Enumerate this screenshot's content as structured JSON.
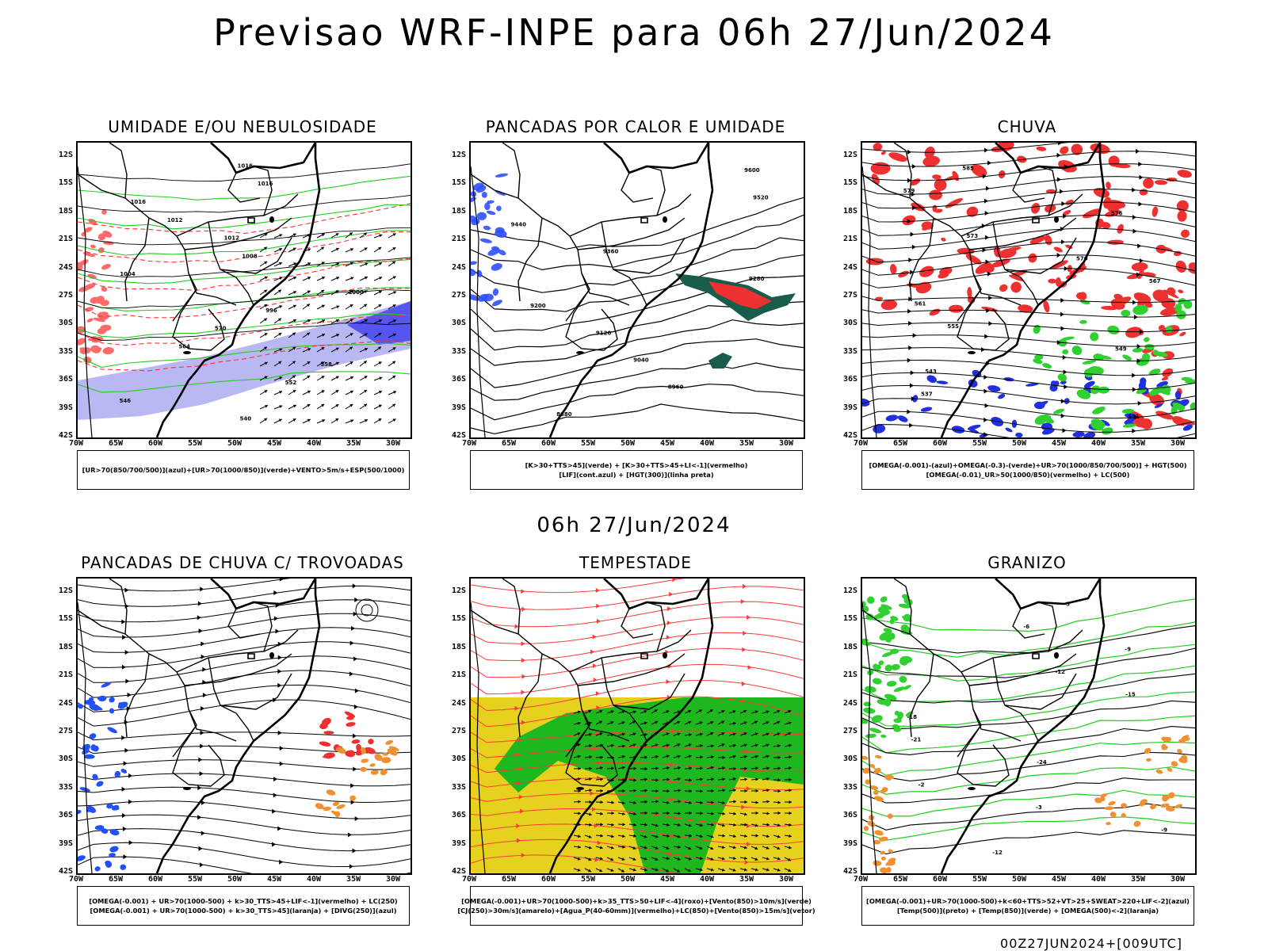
{
  "header": {
    "title": "Previsao WRF-INPE  para 06h 27/Jun/2024",
    "subtitle": "06h 27/Jun/2024",
    "run_stamp": "00Z27JUN2024+[009UTC]"
  },
  "axes": {
    "lat_labels": [
      "12S",
      "15S",
      "18S",
      "21S",
      "24S",
      "27S",
      "30S",
      "33S",
      "36S",
      "39S",
      "42S"
    ],
    "lon_labels": [
      "70W",
      "65W",
      "60W",
      "55W",
      "50W",
      "45W",
      "40W",
      "35W",
      "30W"
    ]
  },
  "panels": [
    {
      "id": "umidade",
      "title": "UMIDADE E/OU NEBULOSIDADE",
      "legend": [
        "[UR>70(850/700/500)](azul)+[UR>70(1000/850)](verde)+VENTO>5m/s+ESP(500/1000)"
      ],
      "overlays": [
        "green",
        "blue",
        "red-dashed",
        "black-contours",
        "wind-barbs"
      ],
      "contour_labels": [
        "1016",
        "1016",
        "1016",
        "1012",
        "1012",
        "1008",
        "1004",
        "1000",
        "996",
        "570",
        "564",
        "558",
        "552",
        "546",
        "540"
      ]
    },
    {
      "id": "calor",
      "title": "PANCADAS POR CALOR E UMIDADE",
      "legend": [
        "[K>30+TTS>45](verde) + [K>30+TTS>45+LI<-1](vermelho)",
        "[LIF](cont.azul) + [HGT(300)](linha preta)"
      ],
      "overlays": [
        "black-contours",
        "blue",
        "darkgreen",
        "red"
      ],
      "contour_labels": [
        "9600",
        "9520",
        "9440",
        "9360",
        "9280",
        "9200",
        "9120",
        "9040",
        "8960",
        "8880"
      ]
    },
    {
      "id": "chuva",
      "title": "CHUVA",
      "legend": [
        "[OMEGA(-0.001)-(azul)+OMEGA(-0.3)-(verde)+UR>70(1000/850/700/500)] + HGT(500)",
        "[OMEGA(-0.01)_UR>50(1000/850)(vermelho) + LC(500)"
      ],
      "overlays": [
        "red",
        "green",
        "blue",
        "streamlines"
      ],
      "contour_labels": [
        "585",
        "579",
        "576",
        "573",
        "570",
        "567",
        "561",
        "555",
        "549",
        "543",
        "537",
        "531"
      ]
    },
    {
      "id": "trovoadas",
      "title": "PANCADAS DE CHUVA C/ TROVOADAS",
      "legend": [
        "[OMEGA(-0.001) + UR>70(1000-500) + k>30_TTS>45+LIF<-1](vermelho) + LC(250)",
        "[OMEGA(-0.001) + UR>70(1000-500) + k>30_TTS>45](laranja) + [DIVG(250)](azul)"
      ],
      "overlays": [
        "streamlines",
        "blue",
        "red",
        "orange"
      ],
      "contour_labels": []
    },
    {
      "id": "tempestade",
      "title": "TEMPESTADE",
      "legend": [
        "[OMEGA(-0.001)+UR>70(1000-500)+k>35_TTS>50+LIF<-4](roxo)+[Vento(850)>10m/s](verde)",
        "[CJ(250)>30m/s](amarelo)+[Agua_P(40-60mm)](vermelho)+LC(850)+[Vento(850)>15m/s](vetor)"
      ],
      "overlays": [
        "yellow",
        "green",
        "red-streamlines",
        "wind-vectors"
      ],
      "contour_labels": []
    },
    {
      "id": "granizo",
      "title": "GRANIZO",
      "legend": [
        "[OMEGA(-0.001)+UR>70(1000-500)+k<60+TTS>52+VT>25+SWEAT>220+LIF<-2](azul)",
        "[Temp(500)](preto) + [Temp(850)](verde) + [OMEGA(500)<-2](laranja)"
      ],
      "overlays": [
        "green-contours",
        "black-contours",
        "orange"
      ],
      "contour_labels": [
        "-3",
        "-6",
        "-9",
        "-12",
        "-15",
        "-18",
        "-21",
        "-24",
        "-2",
        "-3",
        "-9",
        "-12"
      ]
    }
  ]
}
